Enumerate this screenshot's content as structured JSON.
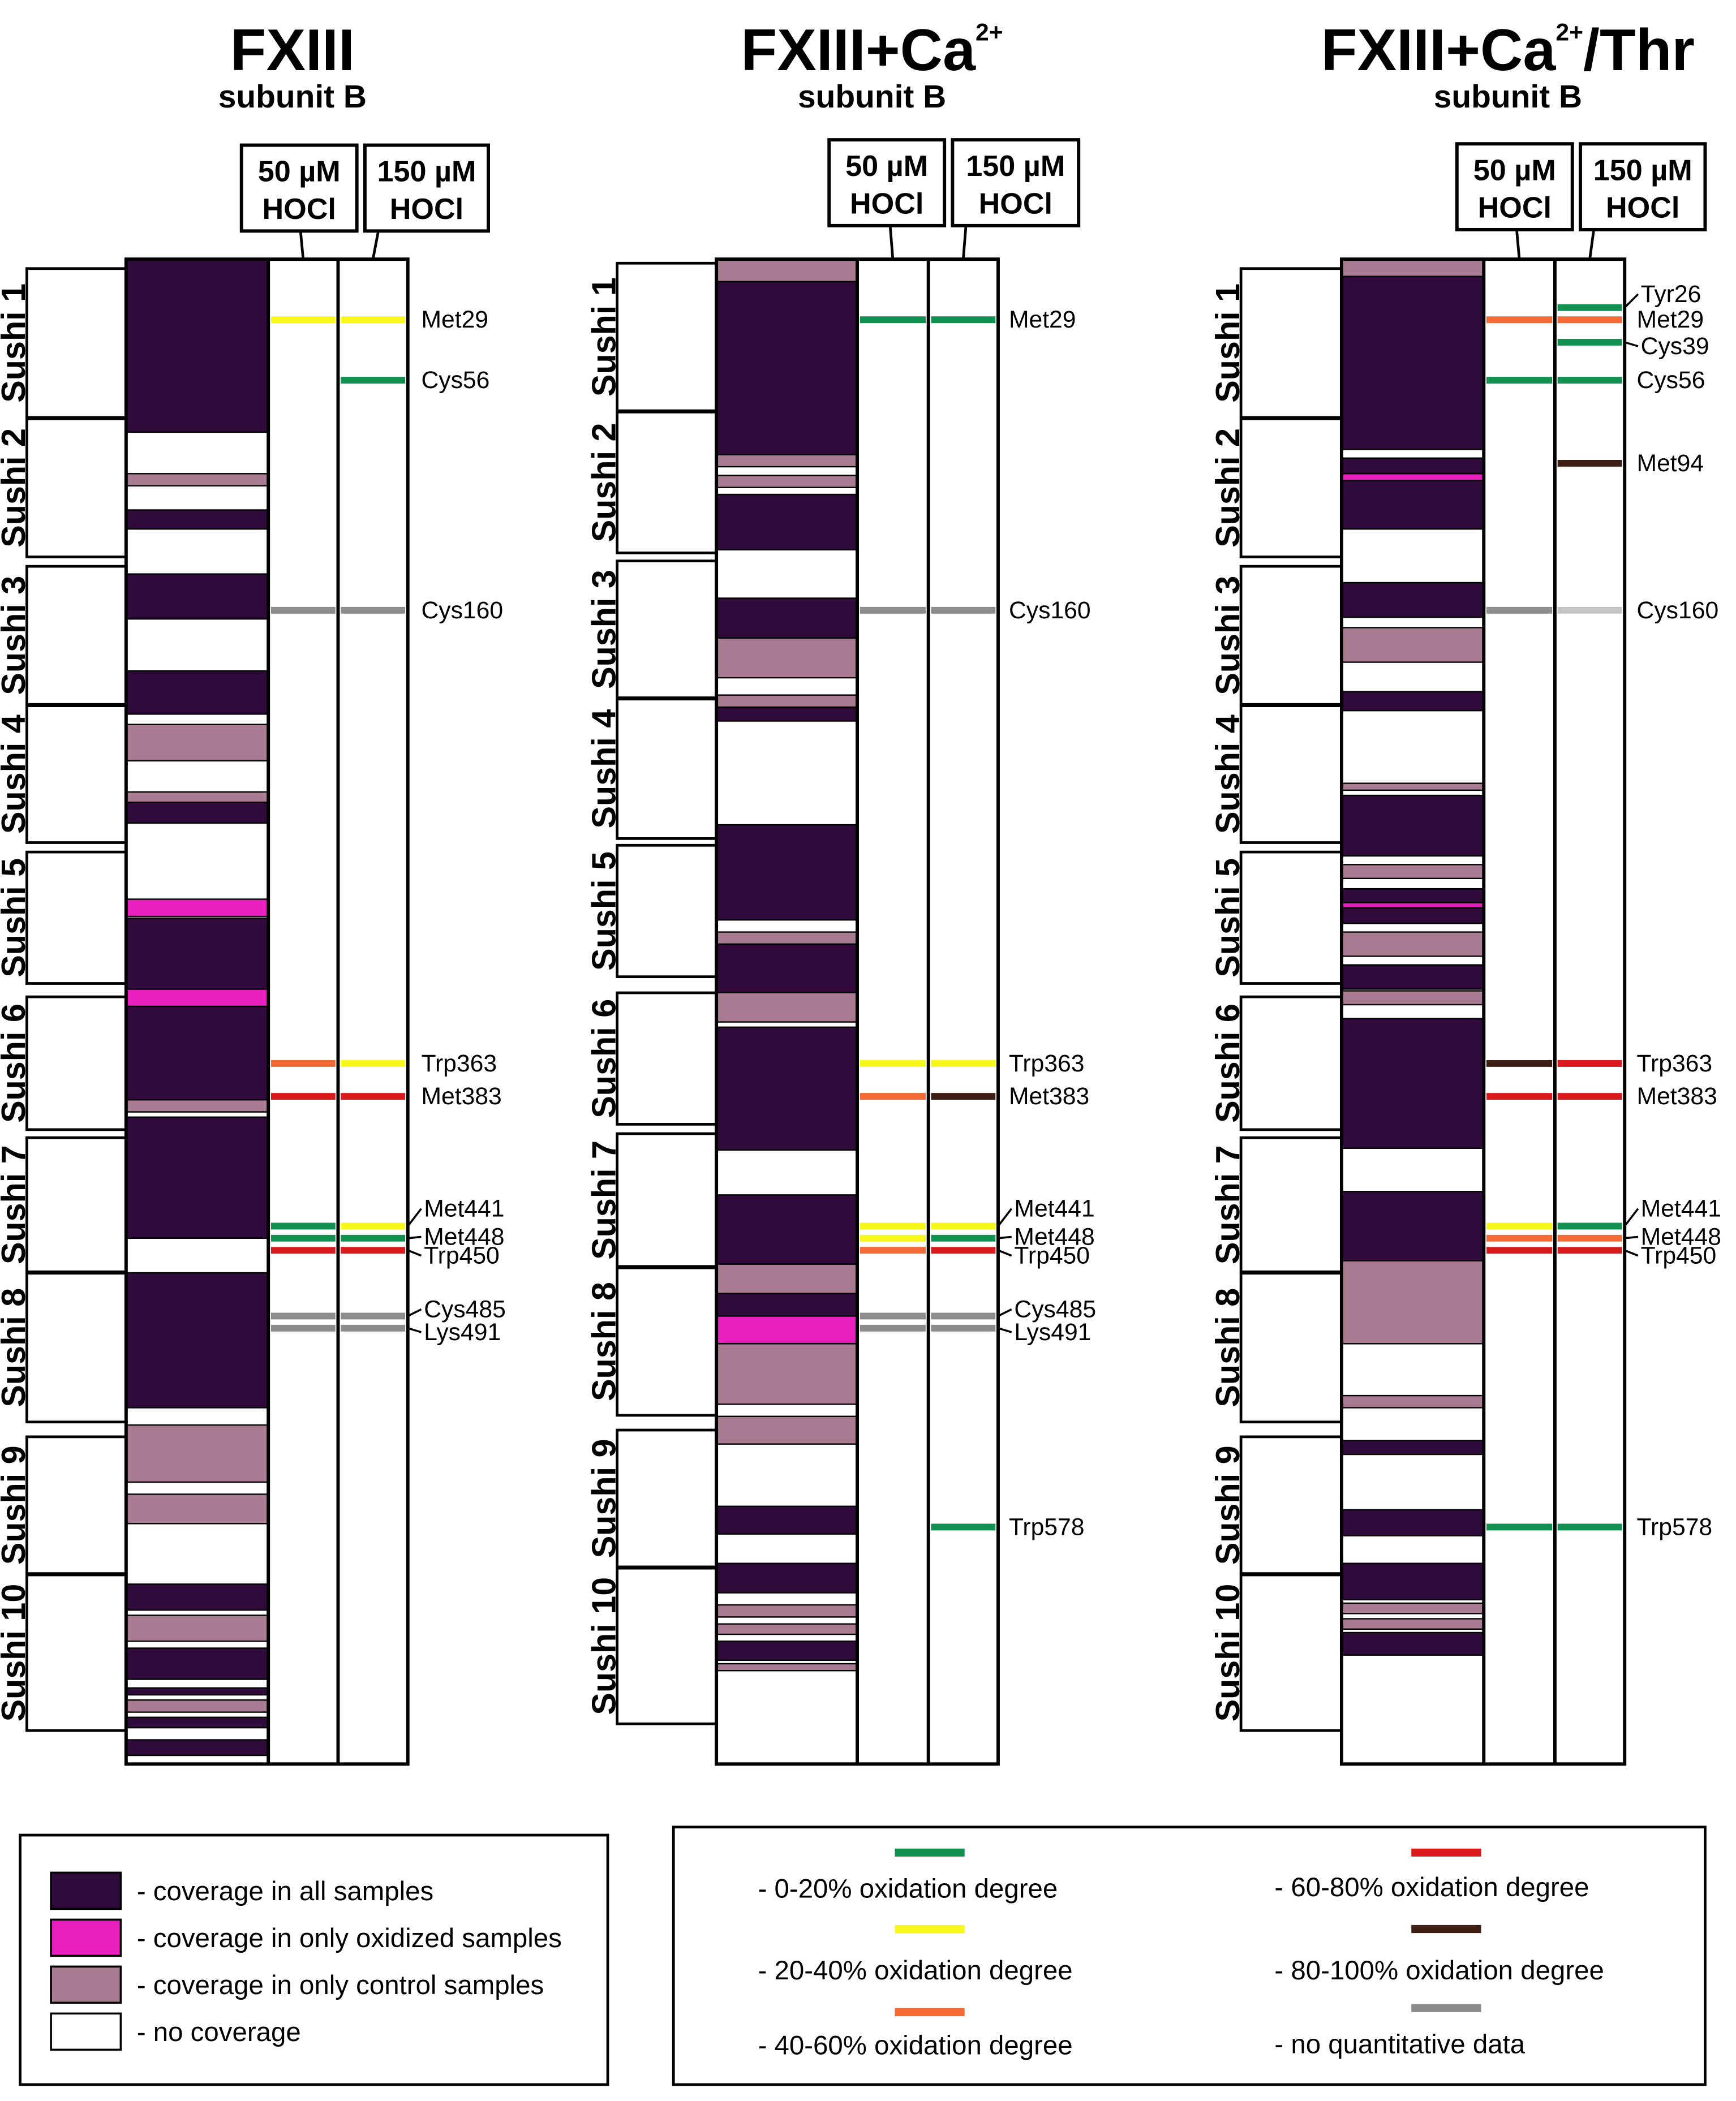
{
  "colors": {
    "all": "#300a3a",
    "oxidized": "#e81ebf",
    "control": "#a87b92",
    "none": "#ffffff",
    "ox_0_20": "#119050",
    "ox_20_40": "#f7f71e",
    "ox_40_60": "#f46a36",
    "ox_60_80": "#db1a1e",
    "ox_80_100": "#3e1e13",
    "no_quant": "#8c8c8c",
    "no_quant_light": "#c4c4c4"
  },
  "chart_data": [
    {
      "type": "coverage-map",
      "title": "FXIII",
      "title_sup": "",
      "title_tail": "",
      "subtitle": "subunit B",
      "columns": [
        {
          "line1": "50 µM",
          "line2": "HOCl"
        },
        {
          "line1": "150 µM",
          "line2": "HOCl"
        }
      ],
      "domains": [
        "Sushi 1",
        "Sushi 2",
        "Sushi 3",
        "Sushi 4",
        "Sushi 5",
        "Sushi 6",
        "Sushi 7",
        "Sushi 8",
        "Sushi 9",
        "Sushi 10"
      ],
      "coverage": [
        {
          "s": 0,
          "e": 10,
          "c": "all"
        },
        {
          "s": 12.4,
          "e": 13.1,
          "c": "control"
        },
        {
          "s": 14.5,
          "e": 15.6,
          "c": "all"
        },
        {
          "s": 18.2,
          "e": 20.8,
          "c": "all"
        },
        {
          "s": 23.8,
          "e": 26.3,
          "c": "all"
        },
        {
          "s": 26.9,
          "e": 29,
          "c": "control"
        },
        {
          "s": 30.8,
          "e": 31.4,
          "c": "control"
        },
        {
          "s": 31.4,
          "e": 32.6,
          "c": "all"
        },
        {
          "s": 37,
          "e": 38,
          "c": "oxidized"
        },
        {
          "s": 38.1,
          "e": 42.2,
          "c": "all"
        },
        {
          "s": 42.2,
          "e": 43.2,
          "c": "oxidized"
        },
        {
          "s": 43.2,
          "e": 48.6,
          "c": "all"
        },
        {
          "s": 48.6,
          "e": 49.3,
          "c": "control"
        },
        {
          "s": 49.6,
          "e": 56.6,
          "c": "all"
        },
        {
          "s": 58.6,
          "e": 66.4,
          "c": "all"
        },
        {
          "s": 67.4,
          "e": 70.7,
          "c": "control"
        },
        {
          "s": 71.4,
          "e": 73.1,
          "c": "control"
        },
        {
          "s": 76.6,
          "e": 78.1,
          "c": "all"
        },
        {
          "s": 78.4,
          "e": 79.9,
          "c": "control"
        },
        {
          "s": 80.3,
          "e": 82.1,
          "c": "all"
        },
        {
          "s": 82.6,
          "e": 83,
          "c": "all"
        },
        {
          "s": 83.3,
          "e": 84,
          "c": "control"
        },
        {
          "s": 84.3,
          "e": 84.9,
          "c": "all"
        },
        {
          "s": 85.6,
          "e": 86.5,
          "c": "all"
        }
      ],
      "sites": [
        {
          "label": "Met29",
          "pos": 3.5,
          "c50": "ox_20_40",
          "c150": "ox_20_40"
        },
        {
          "label": "Cys56",
          "pos": 7,
          "c50": "",
          "c150": "ox_0_20"
        },
        {
          "label": "Cys160",
          "pos": 20.3,
          "c50": "no_quant",
          "c150": "no_quant"
        },
        {
          "label": "Trp363",
          "pos": 46.5,
          "c50": "ox_40_60",
          "c150": "ox_20_40"
        },
        {
          "label": "Met383",
          "pos": 48.4,
          "c50": "ox_60_80",
          "c150": "ox_60_80"
        },
        {
          "label": "Met441",
          "pos": 55.9,
          "c50": "ox_0_20",
          "c150": "ox_20_40"
        },
        {
          "label": "Met448",
          "pos": 56.6,
          "c50": "ox_0_20",
          "c150": "ox_0_20"
        },
        {
          "label": "Trp450",
          "pos": 57.3,
          "c50": "ox_60_80",
          "c150": "ox_60_80"
        },
        {
          "label": "Cys485",
          "pos": 61.1,
          "c50": "no_quant",
          "c150": "no_quant"
        },
        {
          "label": "Lys491",
          "pos": 61.8,
          "c50": "no_quant",
          "c150": "no_quant"
        }
      ]
    },
    {
      "type": "coverage-map",
      "title": "FXIII+Ca",
      "title_sup": "2+",
      "title_tail": "",
      "subtitle": "subunit B",
      "columns": [
        {
          "line1": "50 µM",
          "line2": "HOCl"
        },
        {
          "line1": "150 µM",
          "line2": "HOCl"
        }
      ],
      "domains": [
        "Sushi 1",
        "Sushi 2",
        "Sushi 3",
        "Sushi 4",
        "Sushi 5",
        "Sushi 6",
        "Sushi 7",
        "Sushi 8",
        "Sushi 9",
        "Sushi 10"
      ],
      "coverage": [
        {
          "s": 0,
          "e": 1.3,
          "c": "control"
        },
        {
          "s": 1.3,
          "e": 11.3,
          "c": "all"
        },
        {
          "s": 11.3,
          "e": 12,
          "c": "control"
        },
        {
          "s": 12.5,
          "e": 13.2,
          "c": "control"
        },
        {
          "s": 13.6,
          "e": 16.8,
          "c": "all"
        },
        {
          "s": 19.6,
          "e": 21.9,
          "c": "all"
        },
        {
          "s": 21.9,
          "e": 24.2,
          "c": "control"
        },
        {
          "s": 25.2,
          "e": 25.9,
          "c": "control"
        },
        {
          "s": 25.9,
          "e": 26.7,
          "c": "all"
        },
        {
          "s": 32.7,
          "e": 38.2,
          "c": "all"
        },
        {
          "s": 38.9,
          "e": 39.6,
          "c": "control"
        },
        {
          "s": 39.6,
          "e": 42.4,
          "c": "all"
        },
        {
          "s": 42.4,
          "e": 44.1,
          "c": "control"
        },
        {
          "s": 44.4,
          "e": 51.5,
          "c": "all"
        },
        {
          "s": 54.1,
          "e": 58.1,
          "c": "all"
        },
        {
          "s": 58.1,
          "e": 59.8,
          "c": "control"
        },
        {
          "s": 59.8,
          "e": 61.1,
          "c": "all"
        },
        {
          "s": 61.1,
          "e": 62.7,
          "c": "oxidized"
        },
        {
          "s": 62.7,
          "e": 66.2,
          "c": "control"
        },
        {
          "s": 66.9,
          "e": 68.5,
          "c": "control"
        },
        {
          "s": 72.1,
          "e": 73.7,
          "c": "all"
        },
        {
          "s": 75.4,
          "e": 77.1,
          "c": "all"
        },
        {
          "s": 77.8,
          "e": 78.5,
          "c": "control"
        },
        {
          "s": 78.9,
          "e": 79.5,
          "c": "control"
        },
        {
          "s": 79.9,
          "e": 81,
          "c": "all"
        },
        {
          "s": 81.2,
          "e": 81.6,
          "c": "control"
        }
      ],
      "sites": [
        {
          "label": "Met29",
          "pos": 3.5,
          "c50": "ox_0_20",
          "c150": "ox_0_20"
        },
        {
          "label": "Cys160",
          "pos": 20.3,
          "c50": "no_quant",
          "c150": "no_quant"
        },
        {
          "label": "Trp363",
          "pos": 46.5,
          "c50": "ox_20_40",
          "c150": "ox_20_40"
        },
        {
          "label": "Met383",
          "pos": 48.4,
          "c50": "ox_40_60",
          "c150": "ox_80_100"
        },
        {
          "label": "Met441",
          "pos": 55.9,
          "c50": "ox_20_40",
          "c150": "ox_20_40"
        },
        {
          "label": "Met448",
          "pos": 56.6,
          "c50": "ox_20_40",
          "c150": "ox_0_20"
        },
        {
          "label": "Trp450",
          "pos": 57.3,
          "c50": "ox_40_60",
          "c150": "ox_60_80"
        },
        {
          "label": "Cys485",
          "pos": 61.1,
          "c50": "no_quant",
          "c150": "no_quant"
        },
        {
          "label": "Lys491",
          "pos": 61.8,
          "c50": "no_quant",
          "c150": "no_quant"
        },
        {
          "label": "Trp578",
          "pos": 73.3,
          "c50": "",
          "c150": "ox_0_20"
        }
      ]
    },
    {
      "type": "coverage-map",
      "title": "FXIII+Ca",
      "title_sup": "2+",
      "title_tail": "/Thr",
      "subtitle": "subunit B",
      "columns": [
        {
          "line1": "50 µM",
          "line2": "HOCl"
        },
        {
          "line1": "150 µM",
          "line2": "HOCl"
        }
      ],
      "domains": [
        "Sushi 1",
        "Sushi 2",
        "Sushi 3",
        "Sushi 4",
        "Sushi 5",
        "Sushi 6",
        "Sushi 7",
        "Sushi 8",
        "Sushi 9",
        "Sushi 10"
      ],
      "coverage": [
        {
          "s": 0,
          "e": 1,
          "c": "control"
        },
        {
          "s": 1,
          "e": 11,
          "c": "all"
        },
        {
          "s": 11.5,
          "e": 12.4,
          "c": "all"
        },
        {
          "s": 12.4,
          "e": 12.8,
          "c": "oxidized"
        },
        {
          "s": 12.8,
          "e": 15.6,
          "c": "all"
        },
        {
          "s": 18.7,
          "e": 20.7,
          "c": "all"
        },
        {
          "s": 21.3,
          "e": 23.3,
          "c": "control"
        },
        {
          "s": 25,
          "e": 26.1,
          "c": "all"
        },
        {
          "s": 30.3,
          "e": 30.7,
          "c": "control"
        },
        {
          "s": 31,
          "e": 34.5,
          "c": "all"
        },
        {
          "s": 35,
          "e": 35.8,
          "c": "control"
        },
        {
          "s": 36.4,
          "e": 37.2,
          "c": "all"
        },
        {
          "s": 37.2,
          "e": 37.5,
          "c": "oxidized"
        },
        {
          "s": 37.5,
          "e": 38.4,
          "c": "all"
        },
        {
          "s": 38.9,
          "e": 40.3,
          "c": "control"
        },
        {
          "s": 40.8,
          "e": 42.2,
          "c": "all"
        },
        {
          "s": 42.3,
          "e": 43.1,
          "c": "control"
        },
        {
          "s": 43.9,
          "e": 51.4,
          "c": "all"
        },
        {
          "s": 53.9,
          "e": 57.9,
          "c": "all"
        },
        {
          "s": 57.9,
          "e": 62.7,
          "c": "control"
        },
        {
          "s": 65.7,
          "e": 66.4,
          "c": "control"
        },
        {
          "s": 68.3,
          "e": 69.1,
          "c": "all"
        },
        {
          "s": 72.3,
          "e": 73.8,
          "c": "all"
        },
        {
          "s": 75.4,
          "e": 77.5,
          "c": "all"
        },
        {
          "s": 77.7,
          "e": 78.3,
          "c": "control"
        },
        {
          "s": 78.6,
          "e": 79.2,
          "c": "control"
        },
        {
          "s": 79.4,
          "e": 80.7,
          "c": "all"
        }
      ],
      "sites": [
        {
          "label": "Tyr26",
          "pos": 2.8,
          "c50": "",
          "c150": "ox_0_20"
        },
        {
          "label": "Met29",
          "pos": 3.5,
          "c50": "ox_40_60",
          "c150": "ox_40_60"
        },
        {
          "label": "Cys39",
          "pos": 4.8,
          "c50": "",
          "c150": "ox_0_20"
        },
        {
          "label": "Cys56",
          "pos": 7,
          "c50": "ox_0_20",
          "c150": "ox_0_20"
        },
        {
          "label": "Met94",
          "pos": 11.8,
          "c50": "",
          "c150": "ox_80_100"
        },
        {
          "label": "Cys160",
          "pos": 20.3,
          "c50": "no_quant",
          "c150": "no_quant_light"
        },
        {
          "label": "Trp363",
          "pos": 46.5,
          "c50": "ox_80_100",
          "c150": "ox_60_80"
        },
        {
          "label": "Met383",
          "pos": 48.4,
          "c50": "ox_60_80",
          "c150": "ox_60_80"
        },
        {
          "label": "Met441",
          "pos": 55.9,
          "c50": "ox_20_40",
          "c150": "ox_0_20"
        },
        {
          "label": "Met448",
          "pos": 56.6,
          "c50": "ox_40_60",
          "c150": "ox_40_60"
        },
        {
          "label": "Trp450",
          "pos": 57.3,
          "c50": "ox_60_80",
          "c150": "ox_60_80"
        },
        {
          "label": "Trp578",
          "pos": 73.3,
          "c50": "ox_0_20",
          "c150": "ox_0_20"
        }
      ]
    }
  ],
  "legend_coverage": [
    {
      "color": "all",
      "label": "- coverage in all samples"
    },
    {
      "color": "oxidized",
      "label": "- coverage in only oxidized samples"
    },
    {
      "color": "control",
      "label": "- coverage in only control samples"
    },
    {
      "color": "none",
      "label": "- no coverage"
    }
  ],
  "legend_oxidation": [
    {
      "color": "ox_0_20",
      "label": "- 0-20% oxidation degree"
    },
    {
      "color": "ox_20_40",
      "label": "- 20-40% oxidation degree"
    },
    {
      "color": "ox_40_60",
      "label": "- 40-60% oxidation degree"
    },
    {
      "color": "ox_60_80",
      "label": "- 60-80% oxidation degree"
    },
    {
      "color": "ox_80_100",
      "label": "- 80-100% oxidation degree"
    },
    {
      "color": "no_quant",
      "label": "- no quantitative data"
    }
  ]
}
